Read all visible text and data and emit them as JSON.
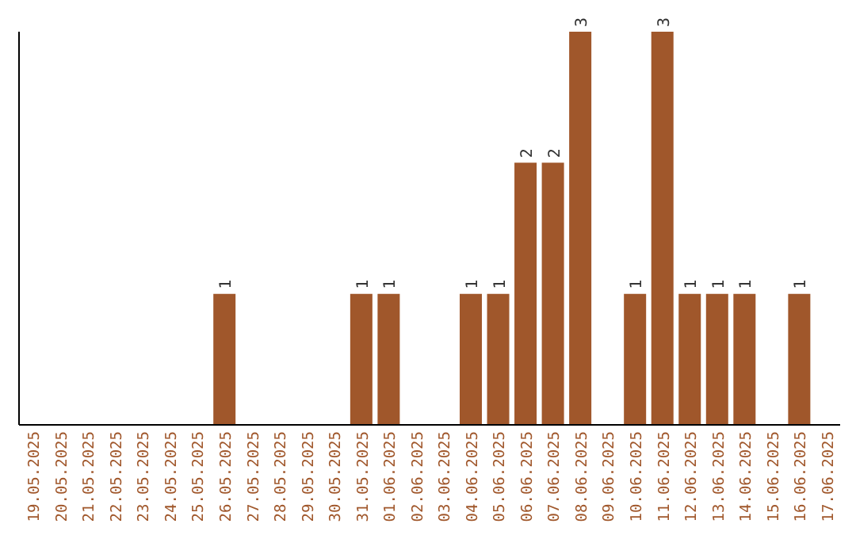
{
  "chart_data": {
    "type": "bar",
    "categories": [
      "19.05.2025",
      "20.05.2025",
      "21.05.2025",
      "22.05.2025",
      "23.05.2025",
      "24.05.2025",
      "25.05.2025",
      "26.05.2025",
      "27.05.2025",
      "28.05.2025",
      "29.05.2025",
      "30.05.2025",
      "31.05.2025",
      "01.06.2025",
      "02.06.2025",
      "03.06.2025",
      "04.06.2025",
      "05.06.2025",
      "06.06.2025",
      "07.06.2025",
      "08.06.2025",
      "09.06.2025",
      "10.06.2025",
      "11.06.2025",
      "12.06.2025",
      "13.06.2025",
      "14.06.2025",
      "15.06.2025",
      "16.06.2025",
      "17.06.2025"
    ],
    "values": [
      0,
      0,
      0,
      0,
      0,
      0,
      0,
      1,
      0,
      0,
      0,
      0,
      1,
      1,
      0,
      0,
      1,
      1,
      2,
      2,
      3,
      0,
      1,
      3,
      1,
      1,
      1,
      0,
      1,
      0
    ],
    "value_labels": [
      null,
      null,
      null,
      null,
      null,
      null,
      null,
      "1",
      null,
      null,
      null,
      null,
      "1",
      "1",
      null,
      null,
      "1",
      "1",
      "2",
      "2",
      "3",
      null,
      "1",
      "3",
      "1",
      "1",
      "1",
      null,
      "1",
      null
    ],
    "color": "#a0572b",
    "ylim": [
      0,
      3
    ],
    "tick_labels": "x",
    "grid": false,
    "legend": false
  }
}
